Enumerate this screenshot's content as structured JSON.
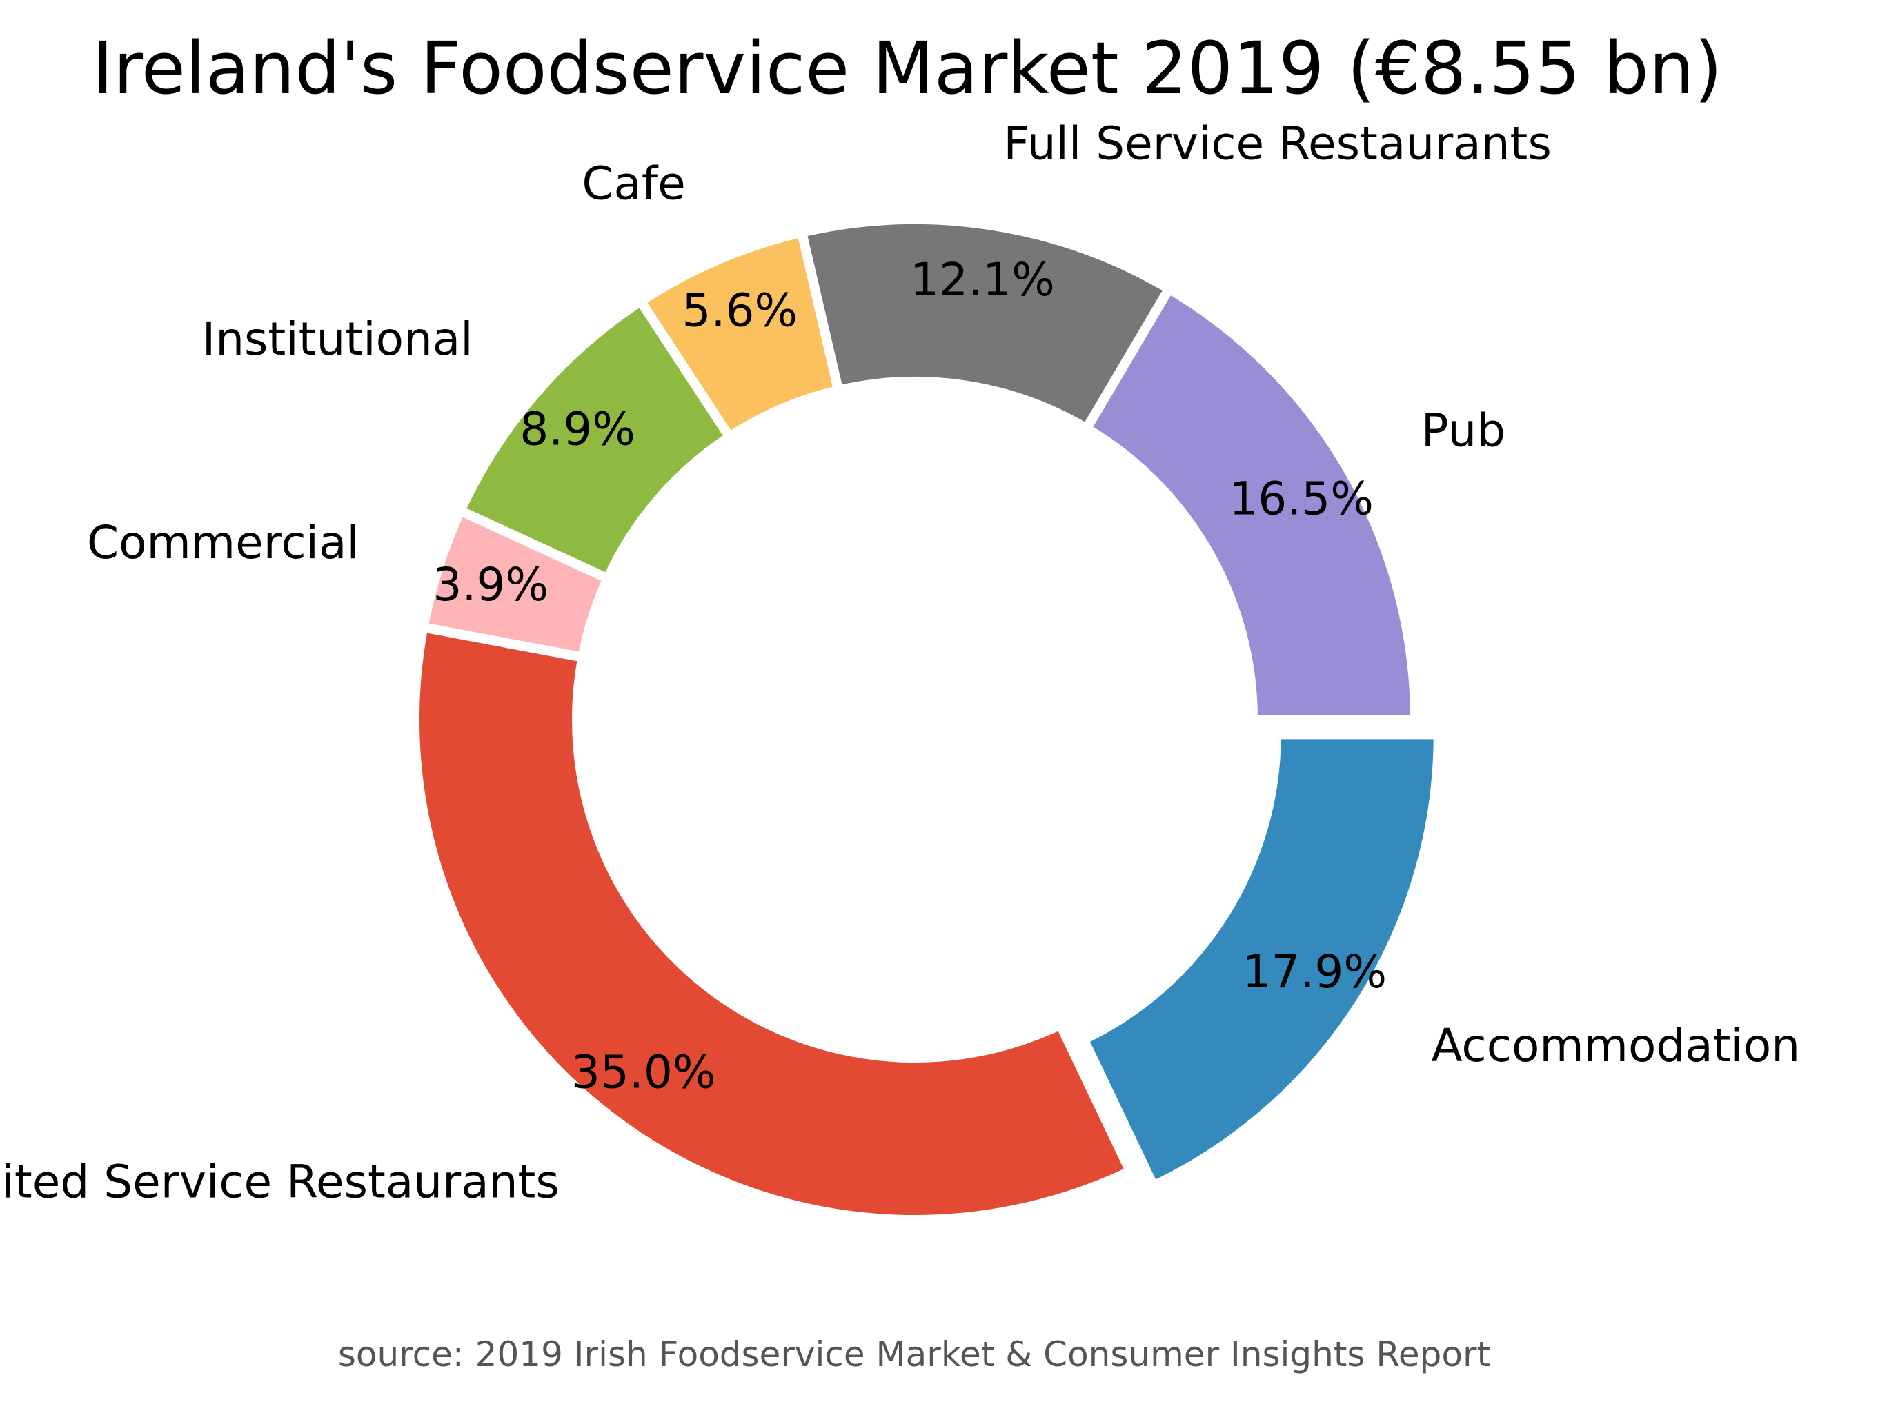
{
  "chart_data": {
    "type": "pie",
    "variant": "donut",
    "title": "Ireland's Foodservice Market 2019 (€8.55 bn)",
    "source": "source: 2019 Irish Foodservice Market & Consumer Insights Report",
    "direction": "clockwise",
    "start_angle_deg": 0,
    "slices": [
      {
        "label": "Accommodation",
        "value": 17.9,
        "pct_text": "17.9%",
        "color": "#348ABD",
        "explode": true
      },
      {
        "label": "Limited Service Restaurants",
        "value": 35.0,
        "pct_text": "35.0%",
        "color": "#E24A33",
        "explode": false
      },
      {
        "label": "Commercial",
        "value": 3.9,
        "pct_text": "3.9%",
        "color": "#FFB5B8",
        "explode": false
      },
      {
        "label": "Institutional",
        "value": 8.9,
        "pct_text": "8.9%",
        "color": "#8EBA42",
        "explode": false
      },
      {
        "label": "Cafe",
        "value": 5.6,
        "pct_text": "5.6%",
        "color": "#FBC15E",
        "explode": false
      },
      {
        "label": "Full Service Restaurants",
        "value": 12.1,
        "pct_text": "12.1%",
        "color": "#777777",
        "explode": false
      },
      {
        "label": "Pub",
        "value": 16.5,
        "pct_text": "16.5%",
        "color": "#988ED5",
        "explode": false
      }
    ]
  }
}
